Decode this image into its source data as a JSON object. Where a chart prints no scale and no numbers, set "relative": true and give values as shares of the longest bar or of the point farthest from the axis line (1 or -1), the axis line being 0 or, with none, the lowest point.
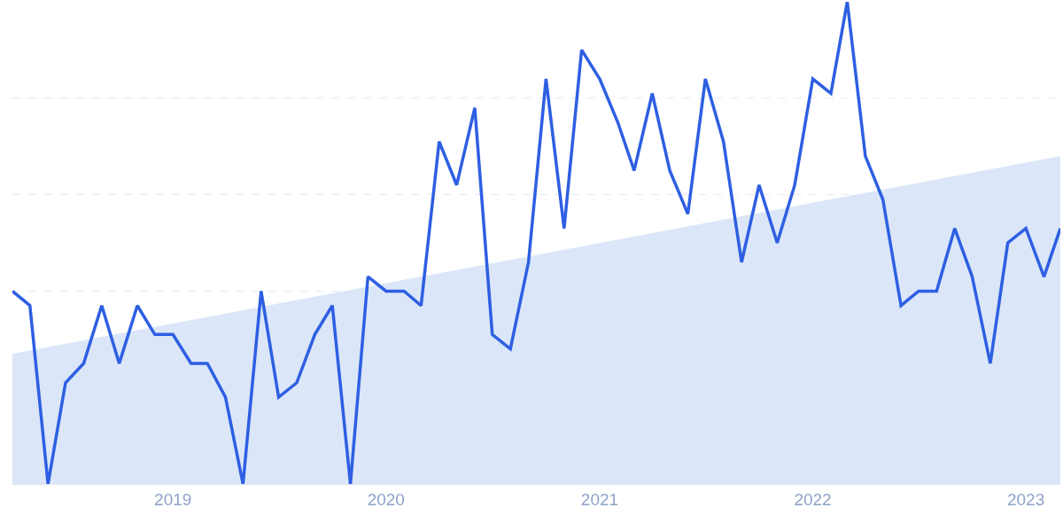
{
  "chart_data": {
    "type": "line",
    "relative": true,
    "x": [
      "2018-04",
      "2018-05",
      "2018-06",
      "2018-07",
      "2018-08",
      "2018-09",
      "2018-10",
      "2018-11",
      "2018-12",
      "2019-01",
      "2019-02",
      "2019-03",
      "2019-04",
      "2019-05",
      "2019-06",
      "2019-07",
      "2019-08",
      "2019-09",
      "2019-10",
      "2019-11",
      "2019-12",
      "2020-01",
      "2020-02",
      "2020-03",
      "2020-04",
      "2020-05",
      "2020-06",
      "2020-07",
      "2020-08",
      "2020-09",
      "2020-10",
      "2020-11",
      "2020-12",
      "2021-01",
      "2021-02",
      "2021-03",
      "2021-04",
      "2021-05",
      "2021-06",
      "2021-07",
      "2021-08",
      "2021-09",
      "2021-10",
      "2021-11",
      "2021-12",
      "2022-01",
      "2022-02",
      "2022-03",
      "2022-04",
      "2022-05",
      "2022-06",
      "2022-07",
      "2022-08",
      "2022-09",
      "2022-10",
      "2022-11",
      "2022-12",
      "2023-01",
      "2023-02",
      "2023-03"
    ],
    "series": [
      {
        "type": "area",
        "color": "#dbe7f8",
        "x": [
          "2018-04",
          "2023-03"
        ],
        "values": [
          0.27,
          0.68
        ]
      },
      {
        "color": "#2e5fe3",
        "values": [
          0.4,
          0.37,
          0,
          0.21,
          0.25,
          0.37,
          0.25,
          0.37,
          0.31,
          0.31,
          0.25,
          0.25,
          0.18,
          0,
          0.4,
          0.18,
          0.21,
          0.31,
          0.37,
          0,
          0.43,
          0.4,
          0.4,
          0.37,
          0.71,
          0.62,
          0.78,
          0.31,
          0.28,
          0.46,
          0.84,
          0.53,
          0.9,
          0.84,
          0.75,
          0.65,
          0.81,
          0.65,
          0.56,
          0.84,
          0.71,
          0.46,
          0.62,
          0.5,
          0.62,
          0.84,
          0.81,
          1,
          0.68,
          0.59,
          0.37,
          0.4,
          0.4,
          0.53,
          0.43,
          0.25,
          0.5,
          0.53,
          0.43,
          0.53
        ]
      }
    ],
    "xlim": [
      "2018-04",
      "2023-03"
    ],
    "xticks": [
      "2019",
      "2020",
      "2021",
      "2022",
      "2023"
    ],
    "grid": "y",
    "marker": "none",
    "line_style": "solid"
  }
}
